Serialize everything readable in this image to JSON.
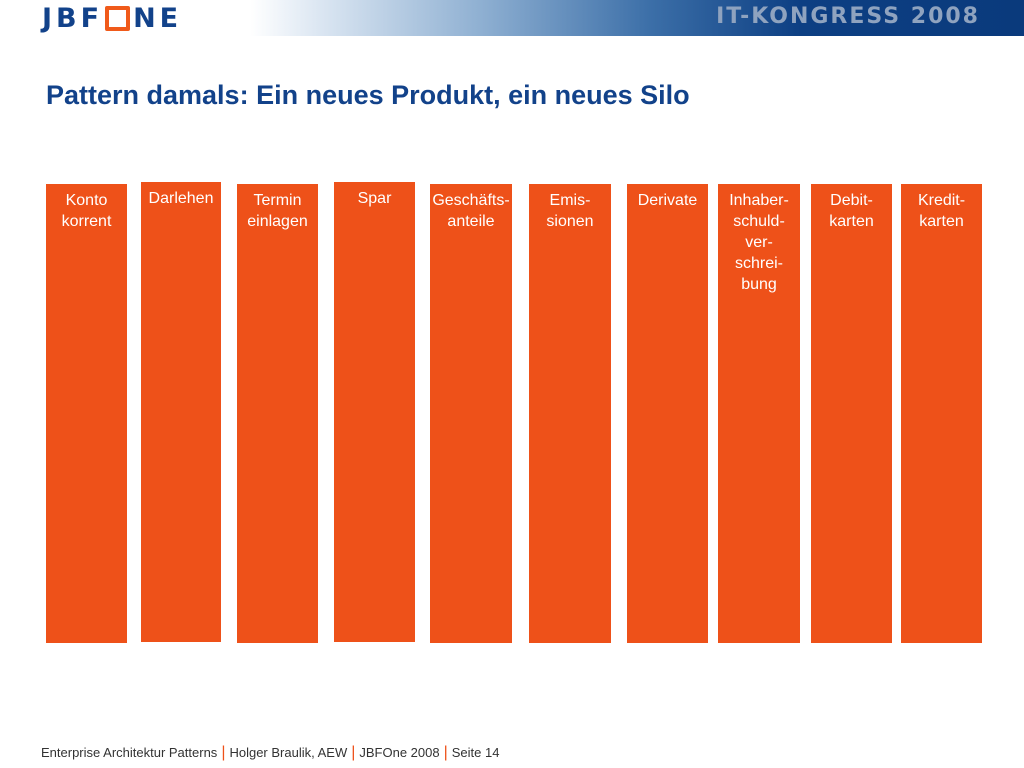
{
  "header": {
    "logo_text": "JBFONE",
    "event_title": "IT-KONGRESS 2008"
  },
  "slide": {
    "title": "Pattern damals: Ein neues Produkt, ein neues Silo"
  },
  "silos": [
    {
      "label": "Konto\nkorrent"
    },
    {
      "label": "Darlehen"
    },
    {
      "label": "Termin\neinlagen"
    },
    {
      "label": "Spar"
    },
    {
      "label": "Geschäfts-\nanteile"
    },
    {
      "label": "Emis-\nsionen"
    },
    {
      "label": "Derivate"
    },
    {
      "label": "Inhaber-\nschuld-\nver-\nschrei-\nbung"
    },
    {
      "label": "Debit-\nkarten"
    },
    {
      "label": "Kredit-\nkarten"
    }
  ],
  "footer": {
    "presentation": "Enterprise Architektur Patterns",
    "author": "Holger Braulik, AEW",
    "event": "JBFOne 2008",
    "page": "Seite 14",
    "separator": "|"
  },
  "colors": {
    "brand_blue": "#12428a",
    "silo_orange": "#ee5119"
  }
}
